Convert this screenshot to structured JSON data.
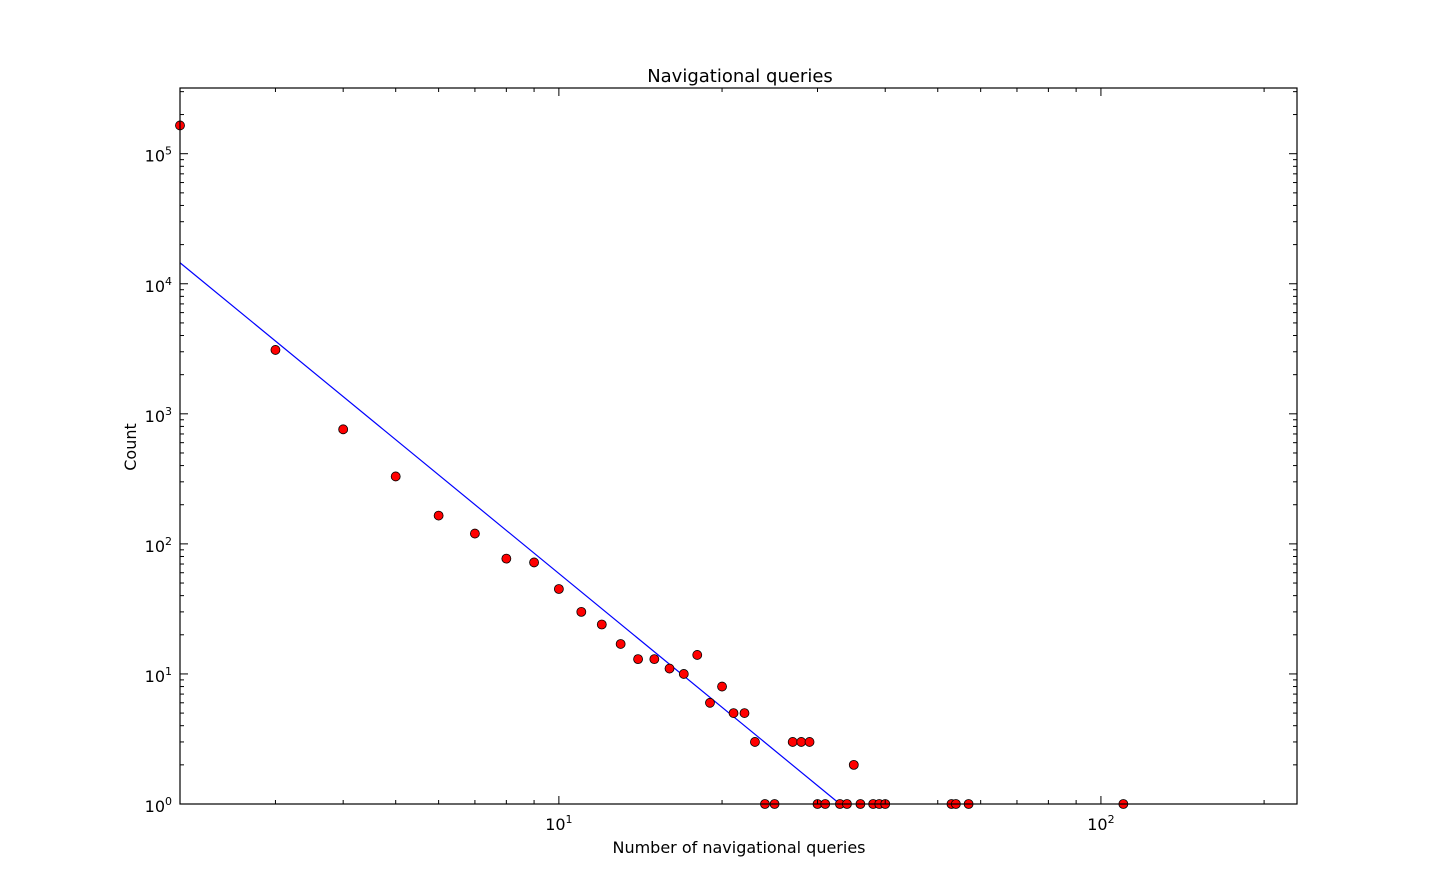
{
  "chart_data": {
    "type": "scatter",
    "title": "Navigational queries",
    "xlabel": "Number of navigational queries",
    "ylabel": "Count",
    "xscale": "log",
    "yscale": "log",
    "xlim": [
      2,
      230
    ],
    "ylim": [
      1,
      320000
    ],
    "grid": false,
    "legend": "none",
    "x_ticks": [
      {
        "value": 10,
        "base": "10",
        "exp": "1"
      },
      {
        "value": 100,
        "base": "10",
        "exp": "2"
      }
    ],
    "y_ticks": [
      {
        "value": 1,
        "base": "10",
        "exp": "0"
      },
      {
        "value": 10,
        "base": "10",
        "exp": "1"
      },
      {
        "value": 100,
        "base": "10",
        "exp": "2"
      },
      {
        "value": 1000,
        "base": "10",
        "exp": "3"
      },
      {
        "value": 10000,
        "base": "10",
        "exp": "4"
      },
      {
        "value": 100000,
        "base": "10",
        "exp": "5"
      }
    ],
    "series": [
      {
        "kind": "points",
        "color": "#ff0000",
        "edgecolor": "#000000",
        "points": [
          [
            2,
            165000
          ],
          [
            3,
            3100
          ],
          [
            4,
            760
          ],
          [
            5,
            330
          ],
          [
            6,
            165
          ],
          [
            7,
            120
          ],
          [
            8,
            77
          ],
          [
            9,
            72
          ],
          [
            10,
            45
          ],
          [
            11,
            30
          ],
          [
            12,
            24
          ],
          [
            13,
            17
          ],
          [
            14,
            13
          ],
          [
            15,
            13
          ],
          [
            16,
            11
          ],
          [
            17,
            10
          ],
          [
            18,
            14
          ],
          [
            19,
            6
          ],
          [
            20,
            8
          ],
          [
            21,
            5
          ],
          [
            22,
            5
          ],
          [
            23,
            3
          ],
          [
            24,
            1
          ],
          [
            25,
            1
          ],
          [
            27,
            3
          ],
          [
            28,
            3
          ],
          [
            29,
            3
          ],
          [
            30,
            1
          ],
          [
            31,
            1
          ],
          [
            33,
            1
          ],
          [
            34,
            1
          ],
          [
            35,
            2
          ],
          [
            36,
            1
          ],
          [
            38,
            1
          ],
          [
            39,
            1
          ],
          [
            40,
            1
          ],
          [
            53,
            1
          ],
          [
            54,
            1
          ],
          [
            57,
            1
          ],
          [
            110,
            1
          ]
        ]
      },
      {
        "kind": "fit-line",
        "color": "#0000ff",
        "points": [
          [
            2,
            14500
          ],
          [
            33,
            1
          ]
        ]
      }
    ]
  }
}
